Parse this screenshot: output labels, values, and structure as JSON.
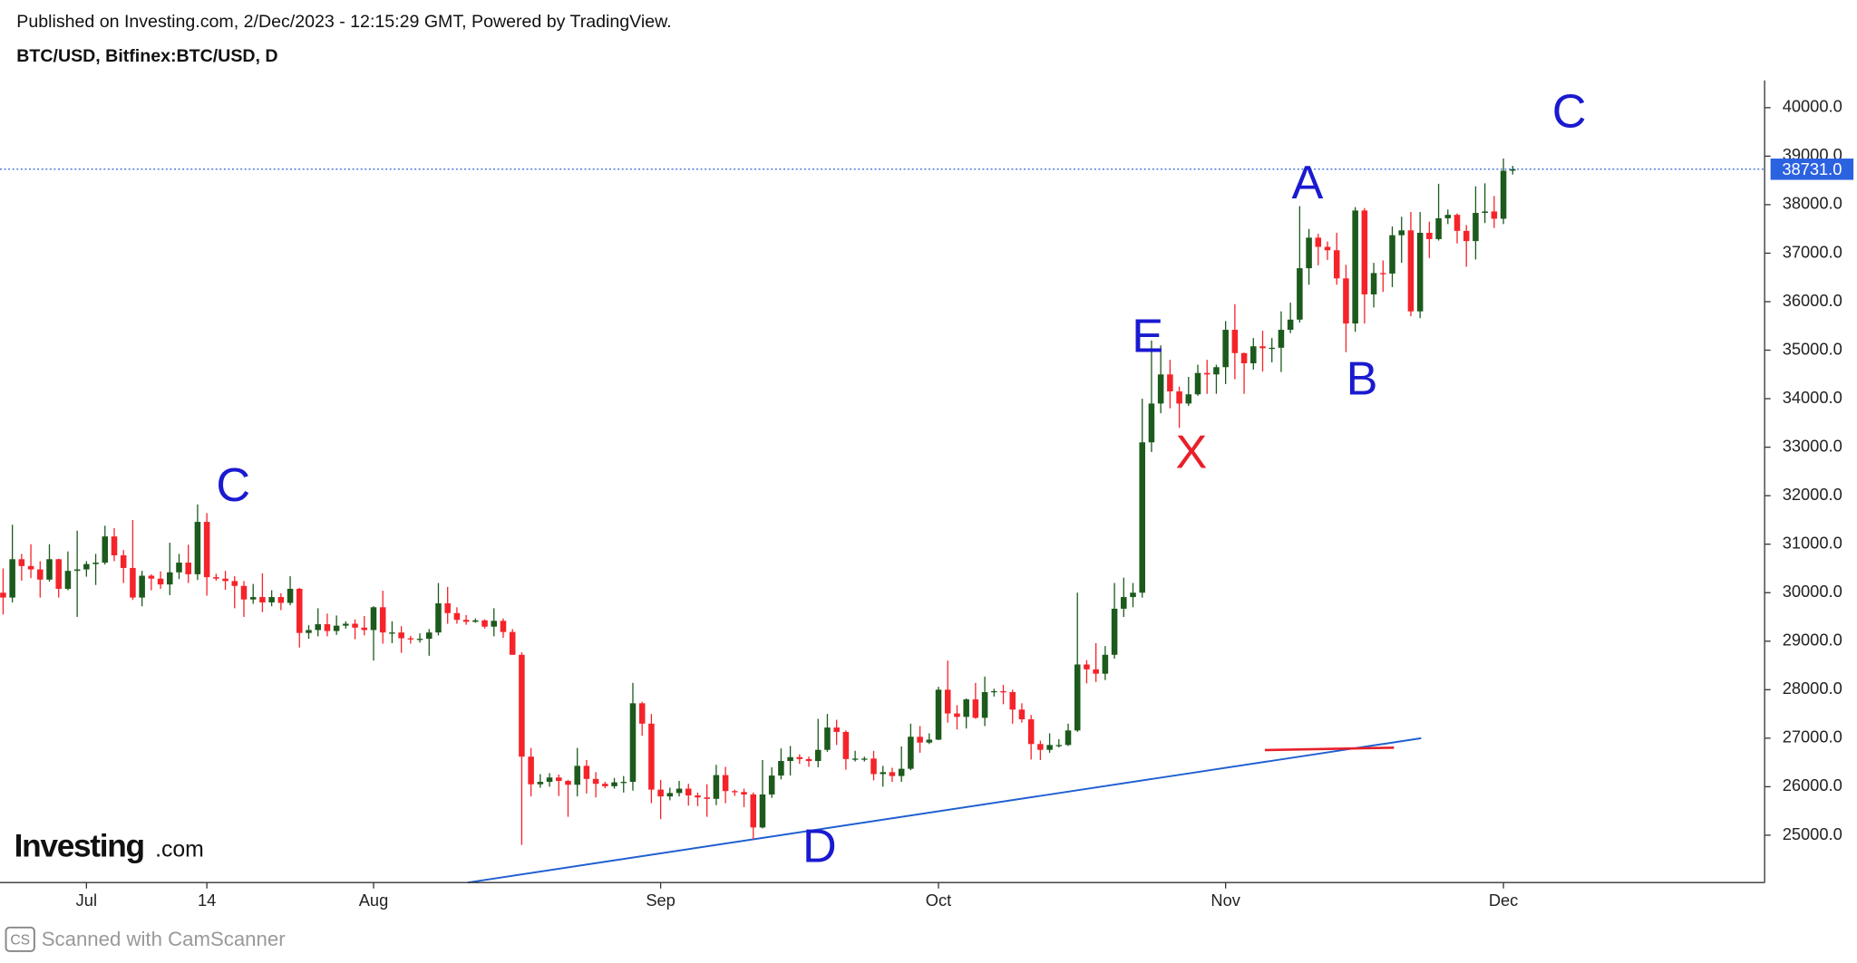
{
  "header": {
    "published": "Published on Investing.com, 2/Dec/2023 - 12:15:29 GMT, Powered by TradingView.",
    "symbol": "BTC/USD, Bitfinex:BTC/USD, D"
  },
  "logo": {
    "brand": "Investing",
    "suffix": ".com"
  },
  "watermark": {
    "badge": "CS",
    "text": "Scanned with CamScanner"
  },
  "chart_data": {
    "type": "candlestick",
    "up_color": "#1d5a1d",
    "down_color": "#f5232a",
    "categories": [
      null,
      null,
      null,
      null,
      null,
      null,
      null,
      null,
      null,
      "Jul",
      null,
      null,
      null,
      null,
      null,
      null,
      null,
      null,
      null,
      null,
      null,
      null,
      "14",
      null,
      null,
      null,
      null,
      null,
      null,
      null,
      null,
      null,
      null,
      null,
      null,
      null,
      null,
      null,
      null,
      null,
      "Aug",
      null,
      null,
      null,
      null,
      null,
      null,
      null,
      null,
      null,
      null,
      null,
      null,
      null,
      null,
      null,
      null,
      null,
      null,
      null,
      null,
      null,
      null,
      null,
      null,
      null,
      null,
      null,
      null,
      null,
      null,
      "Sep",
      null,
      null,
      null,
      null,
      null,
      null,
      null,
      null,
      null,
      null,
      null,
      null,
      null,
      null,
      null,
      null,
      null,
      null,
      null,
      null,
      null,
      null,
      null,
      null,
      null,
      null,
      null,
      null,
      null,
      "Oct",
      null,
      null,
      null,
      null,
      null,
      null,
      null,
      null,
      null,
      null,
      null,
      null,
      null,
      null,
      null,
      null,
      null,
      null,
      null,
      null,
      null,
      null,
      null,
      null,
      null,
      null,
      null,
      null,
      null,
      null,
      "Nov",
      null,
      null,
      null,
      null,
      null,
      null,
      null,
      null,
      null,
      null,
      null,
      null,
      null,
      null,
      null,
      null,
      null,
      null,
      null,
      null,
      null,
      null,
      null,
      null,
      null,
      null,
      null,
      null,
      null,
      "Dec",
      null
    ],
    "open": [
      30000,
      29900,
      30690,
      30550,
      30480,
      30270,
      30690,
      30080,
      30450,
      30480,
      30590,
      30620,
      31160,
      30770,
      30510,
      29900,
      30350,
      30290,
      30170,
      30420,
      30620,
      30380,
      31460,
      30320,
      30290,
      30240,
      30140,
      29860,
      29910,
      29800,
      29910,
      29790,
      30080,
      29170,
      29230,
      29350,
      29210,
      29320,
      29360,
      29280,
      29230,
      29700,
      29180,
      29180,
      29060,
      29040,
      29050,
      29180,
      29780,
      29580,
      29440,
      29400,
      29430,
      29300,
      29420,
      29190,
      28720,
      26620,
      26050,
      26100,
      26190,
      26120,
      26040,
      26430,
      26160,
      26060,
      26010,
      26090,
      26100,
      27720,
      27300,
      25940,
      25800,
      25870,
      25960,
      25820,
      25780,
      25750,
      26240,
      25910,
      25890,
      25840,
      25160,
      25840,
      26230,
      26530,
      26610,
      26570,
      26530,
      26760,
      27220,
      27130,
      26570,
      26580,
      26580,
      26260,
      26300,
      26220,
      26370,
      27030,
      26910,
      26970,
      28000,
      27510,
      27440,
      27800,
      27420,
      27950,
      27970,
      27950,
      27590,
      27390,
      26880,
      26760,
      26860,
      26860,
      27160,
      28520,
      28420,
      28330,
      28720,
      29670,
      29910,
      30000,
      33100,
      33900,
      34500,
      34150,
      33900,
      34090,
      34530,
      34500,
      34650,
      35420,
      34940,
      34730,
      35080,
      35040,
      35050,
      35420,
      35630,
      36690,
      37320,
      37130,
      37060,
      36480,
      35550,
      37880,
      36150,
      36590,
      36580,
      37370,
      37470,
      35800,
      37420,
      37290,
      37720,
      37790,
      37460,
      37250,
      37830,
      37860,
      37710,
      38700
    ],
    "high": [
      30500,
      31400,
      30800,
      31000,
      30650,
      31000,
      30700,
      30850,
      31280,
      30650,
      30800,
      31380,
      31330,
      30880,
      31500,
      30450,
      30380,
      30440,
      31030,
      30800,
      30990,
      31820,
      31640,
      30390,
      30450,
      30340,
      30240,
      30180,
      30400,
      30050,
      29990,
      30340,
      30100,
      29330,
      29680,
      29570,
      29530,
      29410,
      29450,
      29520,
      29720,
      30040,
      29410,
      29310,
      29110,
      29160,
      29250,
      30200,
      30120,
      29700,
      29540,
      29470,
      29450,
      29680,
      29470,
      29250,
      28770,
      26800,
      26260,
      26280,
      26250,
      26140,
      26800,
      26550,
      26300,
      26100,
      26180,
      26220,
      28140,
      27750,
      27500,
      26140,
      25980,
      26120,
      26060,
      25880,
      26050,
      26450,
      26410,
      25940,
      25960,
      25880,
      26550,
      26400,
      26790,
      26840,
      26670,
      26620,
      27400,
      27500,
      27380,
      27160,
      26740,
      26620,
      26740,
      26430,
      26390,
      26830,
      27300,
      27250,
      27100,
      28060,
      28600,
      27680,
      27820,
      28140,
      28270,
      28020,
      28100,
      28000,
      27720,
      27480,
      26950,
      27100,
      26980,
      27300,
      30000,
      28610,
      28960,
      28900,
      30200,
      30310,
      30200,
      34000,
      35200,
      35100,
      34800,
      34250,
      34450,
      34700,
      34800,
      34700,
      35600,
      35950,
      34950,
      35250,
      35400,
      35250,
      35800,
      35980,
      37970,
      37500,
      37400,
      37240,
      37420,
      36760,
      37950,
      37930,
      36800,
      36850,
      37550,
      37750,
      37850,
      37850,
      37650,
      38430,
      37900,
      37820,
      37580,
      38380,
      38440,
      38180,
      38950,
      38800
    ],
    "low": [
      29550,
      29800,
      30250,
      30300,
      29900,
      30230,
      29900,
      30050,
      29500,
      30330,
      30160,
      30580,
      30650,
      30200,
      29850,
      29720,
      30050,
      30080,
      29950,
      30280,
      30200,
      30260,
      29940,
      30250,
      30060,
      29680,
      29500,
      29770,
      29600,
      29720,
      29640,
      29740,
      28870,
      29050,
      29100,
      29100,
      29130,
      29260,
      29040,
      29120,
      28600,
      28950,
      28960,
      28760,
      28950,
      28970,
      28700,
      29120,
      29360,
      29360,
      29340,
      29380,
      29260,
      29100,
      29070,
      28720,
      24800,
      25800,
      25980,
      26000,
      25810,
      25380,
      25800,
      25860,
      25780,
      25970,
      25960,
      25880,
      25920,
      27050,
      25660,
      25330,
      25720,
      25800,
      25610,
      25600,
      25380,
      25620,
      25660,
      25810,
      25580,
      24920,
      25140,
      25770,
      26150,
      26230,
      26470,
      26410,
      26400,
      26720,
      26860,
      26350,
      26520,
      26520,
      26130,
      26000,
      26100,
      26100,
      26340,
      26700,
      26880,
      26960,
      27320,
      27180,
      27200,
      27400,
      27250,
      27860,
      27700,
      27300,
      27320,
      26560,
      26550,
      26700,
      26810,
      26840,
      27130,
      28130,
      28160,
      28200,
      28640,
      29500,
      29700,
      29900,
      32900,
      33700,
      33800,
      33400,
      33850,
      34060,
      34100,
      34100,
      34300,
      34400,
      34100,
      34600,
      34560,
      34750,
      34550,
      35350,
      35570,
      36350,
      36750,
      36860,
      36350,
      34960,
      35380,
      35550,
      35880,
      36200,
      36300,
      36800,
      35700,
      35660,
      36900,
      37260,
      37600,
      37200,
      36720,
      36870,
      37620,
      37520,
      37600,
      38620
    ],
    "close": [
      29900,
      30690,
      30550,
      30480,
      30270,
      30690,
      30080,
      30450,
      30480,
      30590,
      30620,
      31160,
      30770,
      30510,
      29900,
      30350,
      30290,
      30170,
      30420,
      30620,
      30380,
      31460,
      30320,
      30290,
      30240,
      30140,
      29860,
      29910,
      29800,
      29910,
      29790,
      30080,
      29170,
      29230,
      29350,
      29210,
      29320,
      29360,
      29280,
      29230,
      29700,
      29180,
      29180,
      29060,
      29040,
      29050,
      29180,
      29780,
      29580,
      29440,
      29400,
      29430,
      29300,
      29420,
      29190,
      28720,
      26620,
      26050,
      26100,
      26190,
      26120,
      26040,
      26430,
      26160,
      26060,
      26010,
      26090,
      26100,
      27720,
      27300,
      25940,
      25800,
      25870,
      25960,
      25820,
      25780,
      25750,
      26240,
      25910,
      25890,
      25840,
      25160,
      25840,
      26230,
      26530,
      26610,
      26570,
      26530,
      26760,
      27220,
      27130,
      26570,
      26580,
      26580,
      26260,
      26300,
      26220,
      26370,
      27030,
      26910,
      26970,
      28000,
      27510,
      27440,
      27800,
      27420,
      27950,
      27970,
      27950,
      27590,
      27390,
      26880,
      26760,
      26860,
      26860,
      27160,
      28520,
      28420,
      28330,
      28720,
      29670,
      29910,
      30000,
      33100,
      33900,
      34500,
      34150,
      33900,
      34090,
      34530,
      34500,
      34650,
      35420,
      34940,
      34730,
      35080,
      35040,
      35050,
      35420,
      35630,
      36690,
      37320,
      37130,
      37060,
      36480,
      35550,
      37880,
      36150,
      36590,
      36580,
      37370,
      37470,
      35800,
      37420,
      37290,
      37720,
      37790,
      37460,
      37250,
      37830,
      37860,
      37710,
      38700,
      38731
    ],
    "ylim": [
      24024,
      40561
    ],
    "yticks": [
      {
        "value": 25000,
        "label": "25000.0"
      },
      {
        "value": 26000,
        "label": "26000.0"
      },
      {
        "value": 27000,
        "label": "27000.0"
      },
      {
        "value": 28000,
        "label": "28000.0"
      },
      {
        "value": 29000,
        "label": "29000.0"
      },
      {
        "value": 30000,
        "label": "30000.0"
      },
      {
        "value": 31000,
        "label": "31000.0"
      },
      {
        "value": 32000,
        "label": "32000.0"
      },
      {
        "value": 33000,
        "label": "33000.0"
      },
      {
        "value": 34000,
        "label": "34000.0"
      },
      {
        "value": 35000,
        "label": "35000.0"
      },
      {
        "value": 36000,
        "label": "36000.0"
      },
      {
        "value": 37000,
        "label": "37000.0"
      },
      {
        "value": 38000,
        "label": "38000.0"
      },
      {
        "value": 39000,
        "label": "39000.0"
      },
      {
        "value": 40000,
        "label": "40000.0"
      }
    ],
    "last_price": {
      "value": 38731,
      "label": "38731.0"
    },
    "annotations": [
      {
        "text": "C",
        "color": "#1a1ad0"
      },
      {
        "text": "D",
        "color": "#1a1ad0"
      },
      {
        "text": "E",
        "color": "#1a1ad0"
      },
      {
        "text": "X",
        "color": "#e8202a"
      },
      {
        "text": "A",
        "color": "#1a1ad0"
      },
      {
        "text": "B",
        "color": "#1a1ad0"
      },
      {
        "text": "C",
        "color": "#1a1ad0"
      }
    ]
  }
}
